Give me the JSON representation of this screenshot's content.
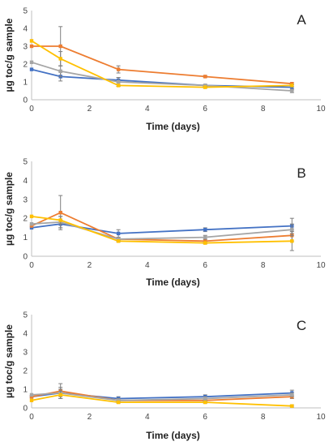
{
  "colors": {
    "blue": "#4472C4",
    "orange": "#ED7D31",
    "gray": "#A5A5A5",
    "yellow": "#FFC000",
    "axis": "#BFBFBF",
    "errorbar": "#7F7F7F"
  },
  "chart_data": [
    {
      "type": "line",
      "panel_label": "A",
      "xlabel": "Time (days)",
      "ylabel": "µg toc/g sample",
      "xlim": [
        0,
        10
      ],
      "ylim": [
        0,
        5
      ],
      "xticks": [
        "0",
        "2",
        "4",
        "6",
        "8",
        "10"
      ],
      "yticks": [
        "0",
        "1",
        "2",
        "3",
        "4",
        "5"
      ],
      "grid": false,
      "x": [
        0,
        1,
        3,
        6,
        9
      ],
      "series": [
        {
          "color": "#4472C4",
          "values": [
            1.7,
            1.3,
            1.1,
            0.8,
            0.7
          ],
          "errors": [
            0,
            0.25,
            0.15,
            0.05,
            0.15
          ]
        },
        {
          "color": "#ED7D31",
          "values": [
            3.0,
            3.0,
            1.7,
            1.3,
            0.9
          ],
          "errors": [
            0,
            1.1,
            0.2,
            0.05,
            0.05
          ]
        },
        {
          "color": "#A5A5A5",
          "values": [
            2.1,
            1.6,
            1.0,
            0.8,
            0.5
          ],
          "errors": [
            0,
            0.3,
            0.25,
            0.05,
            0.1
          ]
        },
        {
          "color": "#FFC000",
          "values": [
            3.3,
            2.3,
            0.8,
            0.7,
            0.8
          ],
          "errors": [
            0,
            0.4,
            0.05,
            0.05,
            0.05
          ]
        }
      ]
    },
    {
      "type": "line",
      "panel_label": "B",
      "xlabel": "Time (days)",
      "ylabel": "µg toc/g sample",
      "xlim": [
        0,
        10
      ],
      "ylim": [
        0,
        5
      ],
      "xticks": [
        "0",
        "2",
        "4",
        "6",
        "8",
        "10"
      ],
      "yticks": [
        "0",
        "1",
        "2",
        "3",
        "4",
        "5"
      ],
      "grid": false,
      "x": [
        0,
        1,
        3,
        6,
        9
      ],
      "series": [
        {
          "color": "#4472C4",
          "values": [
            1.5,
            1.7,
            1.2,
            1.4,
            1.6
          ],
          "errors": [
            0,
            0.2,
            0.2,
            0.1,
            0.4
          ]
        },
        {
          "color": "#ED7D31",
          "values": [
            1.6,
            2.3,
            0.9,
            0.8,
            1.1
          ],
          "errors": [
            0,
            0.9,
            0.05,
            0.1,
            0.3
          ]
        },
        {
          "color": "#A5A5A5",
          "values": [
            1.7,
            1.8,
            0.9,
            1.0,
            1.4
          ],
          "errors": [
            0,
            0.3,
            0.1,
            0.1,
            0.3
          ]
        },
        {
          "color": "#FFC000",
          "values": [
            2.1,
            1.9,
            0.8,
            0.7,
            0.8
          ],
          "errors": [
            0,
            0.2,
            0.05,
            0.05,
            0.5
          ]
        }
      ]
    },
    {
      "type": "line",
      "panel_label": "C",
      "xlabel": "Time (days)",
      "ylabel": "µg toc/g sample",
      "xlim": [
        0,
        10
      ],
      "ylim": [
        0,
        5
      ],
      "xticks": [
        "0",
        "2",
        "4",
        "6",
        "8",
        "10"
      ],
      "yticks": [
        "0",
        "1",
        "2",
        "3",
        "4",
        "5"
      ],
      "grid": false,
      "x": [
        0,
        1,
        3,
        6,
        9
      ],
      "series": [
        {
          "color": "#4472C4",
          "values": [
            0.6,
            0.8,
            0.5,
            0.6,
            0.8
          ],
          "errors": [
            0,
            0.3,
            0.1,
            0.1,
            0.15
          ]
        },
        {
          "color": "#ED7D31",
          "values": [
            0.6,
            0.9,
            0.4,
            0.4,
            0.6
          ],
          "errors": [
            0,
            0.4,
            0.05,
            0.05,
            0.1
          ]
        },
        {
          "color": "#A5A5A5",
          "values": [
            0.7,
            0.8,
            0.4,
            0.5,
            0.7
          ],
          "errors": [
            0,
            0.2,
            0.1,
            0.1,
            0.1
          ]
        },
        {
          "color": "#FFC000",
          "values": [
            0.4,
            0.7,
            0.3,
            0.3,
            0.1
          ],
          "errors": [
            0,
            0.2,
            0.05,
            0.05,
            0.05
          ]
        }
      ]
    }
  ]
}
